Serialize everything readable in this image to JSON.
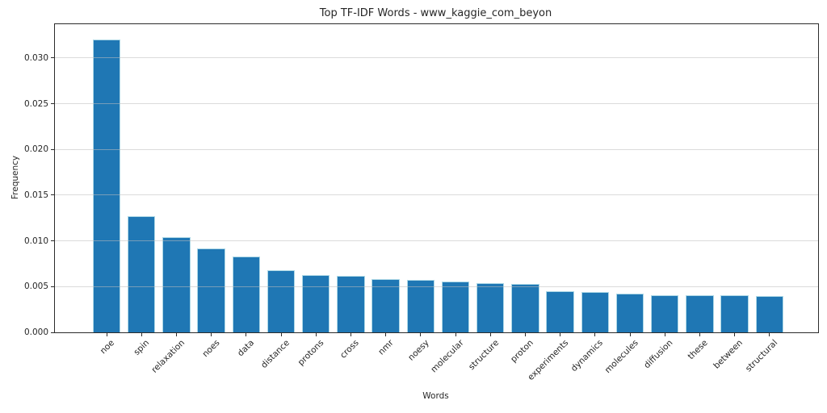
{
  "chart_data": {
    "type": "bar",
    "title": "Top TF-IDF Words - www_kaggie_com_beyon",
    "xlabel": "Words",
    "ylabel": "Frequency",
    "categories": [
      "noe",
      "spin",
      "relaxation",
      "noes",
      "data",
      "distance",
      "protons",
      "cross",
      "nmr",
      "noesy",
      "molecular",
      "structure",
      "proton",
      "experiments",
      "dynamics",
      "molecules",
      "diffusion",
      "these",
      "between",
      "structural"
    ],
    "values": [
      0.032,
      0.0127,
      0.0104,
      0.0092,
      0.0083,
      0.0068,
      0.0063,
      0.0062,
      0.0058,
      0.0057,
      0.0056,
      0.0054,
      0.0053,
      0.0045,
      0.0044,
      0.0042,
      0.0041,
      0.0041,
      0.0041,
      0.004
    ],
    "ylim": [
      0,
      0.0337
    ],
    "yticks": [
      0.0,
      0.005,
      0.01,
      0.015,
      0.02,
      0.025,
      0.03
    ],
    "ytick_labels": [
      "0.000",
      "0.005",
      "0.010",
      "0.015",
      "0.020",
      "0.025",
      "0.030"
    ],
    "x_tick_rotation": 45,
    "grid": "horizontal",
    "legend": "none",
    "bar_color": "#1f77b4",
    "bar_edge_color": "#add8e6",
    "grid_color": "#dcdcdc",
    "spine_color": "#2b2b2b",
    "text_color": "#262626"
  }
}
